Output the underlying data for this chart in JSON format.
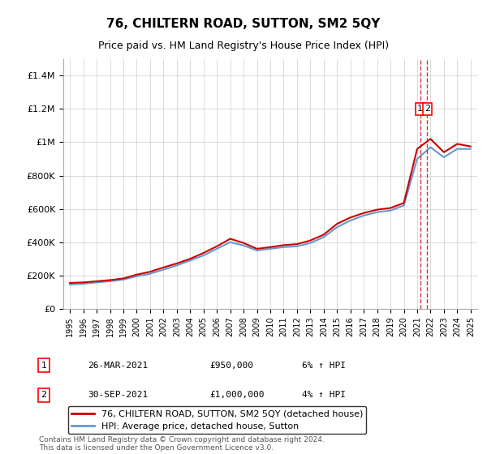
{
  "title": "76, CHILTERN ROAD, SUTTON, SM2 5QY",
  "subtitle": "Price paid vs. HM Land Registry's House Price Index (HPI)",
  "xlabel": "",
  "ylabel": "",
  "ylim": [
    0,
    1500000
  ],
  "yticks": [
    0,
    200000,
    400000,
    600000,
    800000,
    1000000,
    1200000,
    1400000
  ],
  "ytick_labels": [
    "£0",
    "£200K",
    "£400K",
    "£600K",
    "£800K",
    "£1M",
    "£1.2M",
    "£1.4M"
  ],
  "xlim_start": 1995,
  "xlim_end": 2025.5,
  "hpi_color": "#6699cc",
  "price_color": "#cc0000",
  "annotation_color": "#cc0000",
  "dashed_line_color": "#cc0000",
  "legend_label_price": "76, CHILTERN ROAD, SUTTON, SM2 5QY (detached house)",
  "legend_label_hpi": "HPI: Average price, detached house, Sutton",
  "transactions": [
    {
      "num": 1,
      "date": "26-MAR-2021",
      "price": "£950,000",
      "hpi": "6% ↑ HPI"
    },
    {
      "num": 2,
      "date": "30-SEP-2021",
      "price": "£1,000,000",
      "hpi": "4% ↑ HPI"
    }
  ],
  "footnote": "Contains HM Land Registry data © Crown copyright and database right 2024.\nThis data is licensed under the Open Government Licence v3.0.",
  "transaction_dates": [
    2021.23,
    2021.75
  ],
  "hpi_years": [
    1995,
    1996,
    1997,
    1998,
    1999,
    2000,
    2001,
    2002,
    2003,
    2004,
    2005,
    2006,
    2007,
    2008,
    2009,
    2010,
    2011,
    2012,
    2013,
    2014,
    2015,
    2016,
    2017,
    2018,
    2019,
    2020,
    2021,
    2022,
    2023,
    2024,
    2025
  ],
  "hpi_values": [
    145000,
    150000,
    158000,
    165000,
    175000,
    195000,
    210000,
    235000,
    260000,
    290000,
    320000,
    360000,
    400000,
    380000,
    350000,
    360000,
    370000,
    375000,
    395000,
    430000,
    490000,
    530000,
    560000,
    580000,
    590000,
    620000,
    900000,
    970000,
    910000,
    960000,
    960000
  ],
  "price_years": [
    1995,
    1996,
    1997,
    1998,
    1999,
    2000,
    2001,
    2002,
    2003,
    2004,
    2005,
    2006,
    2007,
    2008,
    2009,
    2010,
    2011,
    2012,
    2013,
    2014,
    2015,
    2016,
    2017,
    2018,
    2019,
    2020,
    2021,
    2022,
    2023,
    2024,
    2025
  ],
  "price_values": [
    155000,
    158000,
    165000,
    172000,
    182000,
    205000,
    222000,
    248000,
    272000,
    300000,
    335000,
    375000,
    420000,
    395000,
    360000,
    370000,
    382000,
    388000,
    410000,
    445000,
    510000,
    548000,
    575000,
    595000,
    605000,
    635000,
    960000,
    1020000,
    940000,
    990000,
    975000
  ],
  "background_color": "#ffffff",
  "grid_color": "#cccccc",
  "fig_width": 6.0,
  "fig_height": 5.6
}
